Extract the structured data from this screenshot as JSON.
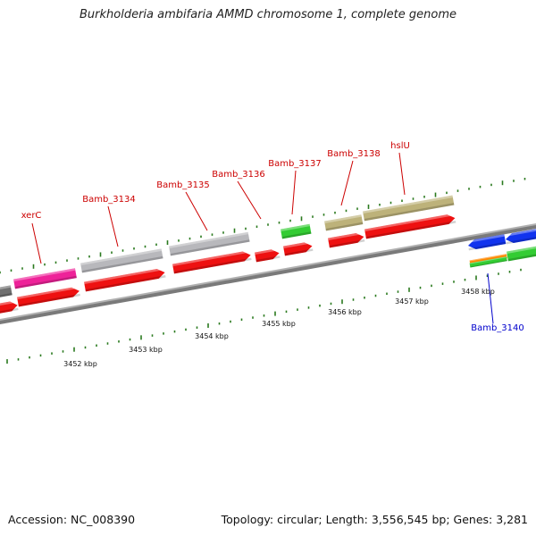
{
  "title": "Burkholderia ambifaria AMMD chromosome 1, complete genome",
  "footer": {
    "accession": "Accession: NC_008390",
    "summary": "Topology: circular; Length: 3,556,545 bp; Genes: 3,281"
  },
  "colors": {
    "backbone": "#8a8a8a",
    "ticks": "#2a7a1e",
    "label_red": "#cc0000",
    "label_blue": "#0000cc",
    "gene_red": "#ee1111",
    "gene_pink": "#ee2299",
    "gene_grey": "#b8b8bc",
    "gene_darkgrey": "#707070",
    "gene_green": "#33cc33",
    "gene_olive": "#bdb27a",
    "gene_blue": "#1133ee",
    "gene_orange": "#ff8800"
  },
  "scale": {
    "units": "kbp",
    "labels": [
      "3452 kbp",
      "3453 kbp",
      "3454 kbp",
      "3455 kbp",
      "3456 kbp",
      "3457 kbp",
      "3458 kbp"
    ]
  },
  "gene_labels": [
    {
      "name": "xerC",
      "color": "red"
    },
    {
      "name": "Bamb_3134",
      "color": "red"
    },
    {
      "name": "Bamb_3135",
      "color": "red"
    },
    {
      "name": "Bamb_3136",
      "color": "red"
    },
    {
      "name": "Bamb_3137",
      "color": "red"
    },
    {
      "name": "Bamb_3138",
      "color": "red"
    },
    {
      "name": "hslU",
      "color": "red"
    },
    {
      "name": "Bamb_3140",
      "color": "blue"
    }
  ]
}
